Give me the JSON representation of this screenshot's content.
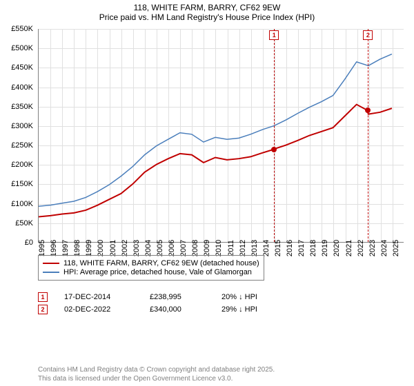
{
  "title": {
    "line1": "118, WHITE FARM, BARRY, CF62 9EW",
    "line2": "Price paid vs. HM Land Registry's House Price Index (HPI)"
  },
  "chart": {
    "type": "line",
    "background_color": "#ffffff",
    "grid_color": "#e0e0e0",
    "axis_color": "#808080",
    "label_fontsize": 11,
    "x": {
      "min": 1995,
      "max": 2026,
      "ticks": [
        1995,
        1996,
        1997,
        1998,
        1999,
        2000,
        2001,
        2002,
        2003,
        2004,
        2005,
        2006,
        2007,
        2008,
        2009,
        2010,
        2011,
        2012,
        2013,
        2014,
        2015,
        2016,
        2017,
        2018,
        2019,
        2020,
        2021,
        2022,
        2023,
        2024,
        2025
      ]
    },
    "y": {
      "min": 0,
      "max": 550000,
      "ticks": [
        0,
        50000,
        100000,
        150000,
        200000,
        250000,
        300000,
        350000,
        400000,
        450000,
        500000,
        550000
      ],
      "labels": [
        "£0",
        "£50K",
        "£100K",
        "£150K",
        "£200K",
        "£250K",
        "£300K",
        "£350K",
        "£400K",
        "£450K",
        "£500K",
        "£550K"
      ]
    },
    "series": [
      {
        "name": "price_paid",
        "label": "118, WHITE FARM, BARRY, CF62 9EW (detached house)",
        "color": "#c00000",
        "line_width": 2,
        "data": [
          [
            1995,
            65000
          ],
          [
            1996,
            68000
          ],
          [
            1997,
            72000
          ],
          [
            1998,
            75000
          ],
          [
            1999,
            82000
          ],
          [
            2000,
            95000
          ],
          [
            2001,
            110000
          ],
          [
            2002,
            125000
          ],
          [
            2003,
            150000
          ],
          [
            2004,
            180000
          ],
          [
            2005,
            200000
          ],
          [
            2006,
            215000
          ],
          [
            2007,
            228000
          ],
          [
            2008,
            225000
          ],
          [
            2009,
            205000
          ],
          [
            2010,
            218000
          ],
          [
            2011,
            212000
          ],
          [
            2012,
            215000
          ],
          [
            2013,
            220000
          ],
          [
            2014,
            230000
          ],
          [
            2014.96,
            238995
          ],
          [
            2015,
            240000
          ],
          [
            2016,
            250000
          ],
          [
            2017,
            262000
          ],
          [
            2018,
            275000
          ],
          [
            2019,
            285000
          ],
          [
            2020,
            295000
          ],
          [
            2021,
            325000
          ],
          [
            2022,
            355000
          ],
          [
            2022.92,
            340000
          ],
          [
            2023,
            330000
          ],
          [
            2024,
            335000
          ],
          [
            2025,
            345000
          ]
        ]
      },
      {
        "name": "hpi",
        "label": "HPI: Average price, detached house, Vale of Glamorgan",
        "color": "#4a7ebb",
        "line_width": 1.5,
        "data": [
          [
            1995,
            92000
          ],
          [
            1996,
            95000
          ],
          [
            1997,
            100000
          ],
          [
            1998,
            105000
          ],
          [
            1999,
            115000
          ],
          [
            2000,
            130000
          ],
          [
            2001,
            148000
          ],
          [
            2002,
            170000
          ],
          [
            2003,
            195000
          ],
          [
            2004,
            225000
          ],
          [
            2005,
            248000
          ],
          [
            2006,
            265000
          ],
          [
            2007,
            282000
          ],
          [
            2008,
            278000
          ],
          [
            2009,
            258000
          ],
          [
            2010,
            270000
          ],
          [
            2011,
            265000
          ],
          [
            2012,
            268000
          ],
          [
            2013,
            278000
          ],
          [
            2014,
            290000
          ],
          [
            2015,
            300000
          ],
          [
            2016,
            315000
          ],
          [
            2017,
            332000
          ],
          [
            2018,
            348000
          ],
          [
            2019,
            362000
          ],
          [
            2020,
            378000
          ],
          [
            2021,
            420000
          ],
          [
            2022,
            465000
          ],
          [
            2023,
            455000
          ],
          [
            2024,
            472000
          ],
          [
            2025,
            485000
          ]
        ]
      }
    ],
    "markers": [
      {
        "id": "1",
        "x": 2014.96,
        "y": 238995,
        "color": "#c00000"
      },
      {
        "id": "2",
        "x": 2022.92,
        "y": 340000,
        "color": "#c00000"
      }
    ]
  },
  "legend": {
    "items": [
      {
        "color": "#c00000",
        "label": "118, WHITE FARM, BARRY, CF62 9EW (detached house)"
      },
      {
        "color": "#4a7ebb",
        "label": "HPI: Average price, detached house, Vale of Glamorgan"
      }
    ]
  },
  "sales": [
    {
      "id": "1",
      "date": "17-DEC-2014",
      "price": "£238,995",
      "diff": "20% ↓ HPI"
    },
    {
      "id": "2",
      "date": "02-DEC-2022",
      "price": "£340,000",
      "diff": "29% ↓ HPI"
    }
  ],
  "footer": {
    "line1": "Contains HM Land Registry data © Crown copyright and database right 2025.",
    "line2": "This data is licensed under the Open Government Licence v3.0."
  }
}
